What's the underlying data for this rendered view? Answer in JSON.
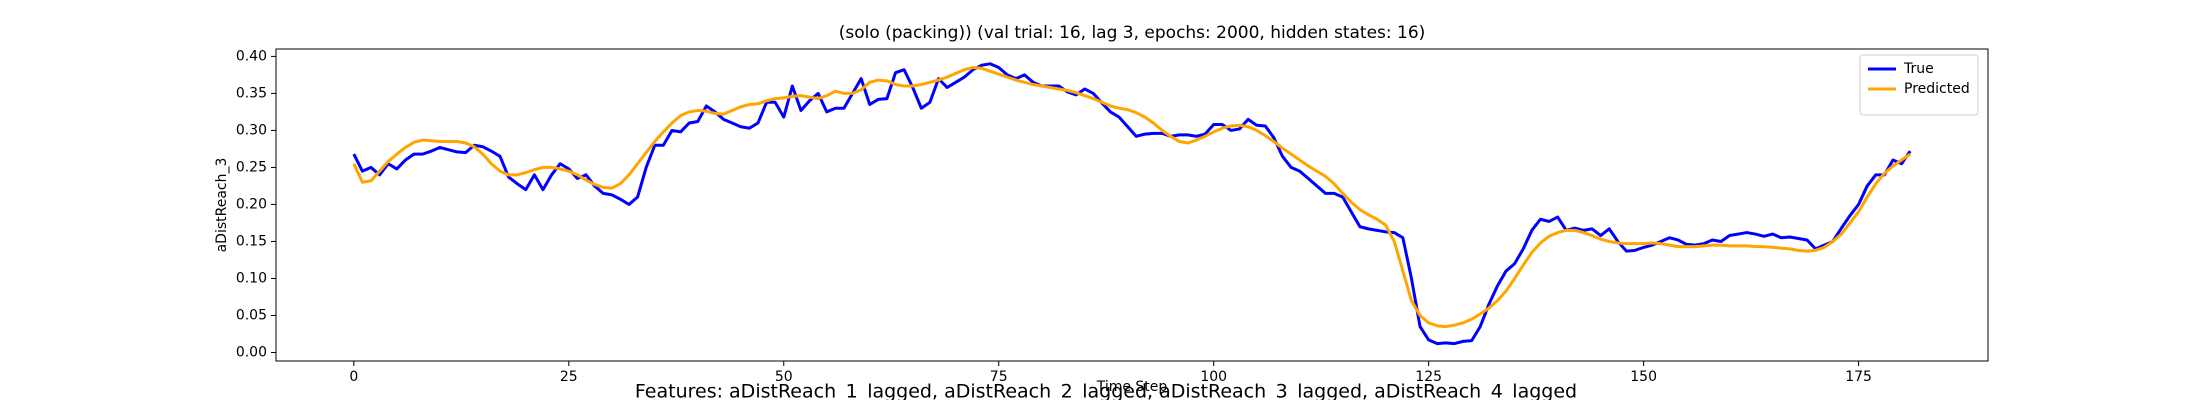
{
  "chart_data": {
    "type": "line",
    "title": "(solo (packing)) (val trial: 16, lag 3, epochs: 2000, hidden states: 16)",
    "xlabel": "Time Step",
    "ylabel": "aDistReach_3",
    "caption": "Features: aDistReach_1_lagged, aDistReach_2_lagged, aDistReach_3_lagged, aDistReach_4_lagged",
    "legend": "upper right",
    "x": [
      0,
      1,
      2,
      3,
      4,
      5,
      6,
      7,
      8,
      9,
      10,
      11,
      12,
      13,
      14,
      15,
      16,
      17,
      18,
      19,
      20,
      21,
      22,
      23,
      24,
      25,
      26,
      27,
      28,
      29,
      30,
      31,
      32,
      33,
      34,
      35,
      36,
      37,
      38,
      39,
      40,
      41,
      42,
      43,
      44,
      45,
      46,
      47,
      48,
      49,
      50,
      51,
      52,
      53,
      54,
      55,
      56,
      57,
      58,
      59,
      60,
      61,
      62,
      63,
      64,
      65,
      66,
      67,
      68,
      69,
      70,
      71,
      72,
      73,
      74,
      75,
      76,
      77,
      78,
      79,
      80,
      81,
      82,
      83,
      84,
      85,
      86,
      87,
      88,
      89,
      90,
      91,
      92,
      93,
      94,
      95,
      96,
      97,
      98,
      99,
      100,
      101,
      102,
      103,
      104,
      105,
      106,
      107,
      108,
      109,
      110,
      111,
      112,
      113,
      114,
      115,
      116,
      117,
      118,
      119,
      120,
      121,
      122,
      123,
      124,
      125,
      126,
      127,
      128,
      129,
      130,
      131,
      132,
      133,
      134,
      135,
      136,
      137,
      138,
      139,
      140,
      141,
      142,
      143,
      144,
      145,
      146,
      147,
      148,
      149,
      150,
      151,
      152,
      153,
      154,
      155,
      156,
      157,
      158,
      159,
      160,
      161,
      162,
      163,
      164,
      165,
      166,
      167,
      168,
      169,
      170,
      171,
      172,
      173,
      174,
      175,
      176,
      177,
      178,
      179,
      180,
      181
    ],
    "series": [
      {
        "name": "True",
        "color": "#0000ff",
        "values": [
          0.268,
          0.245,
          0.25,
          0.24,
          0.255,
          0.248,
          0.26,
          0.268,
          0.268,
          0.272,
          0.277,
          0.274,
          0.271,
          0.27,
          0.28,
          0.278,
          0.272,
          0.265,
          0.237,
          0.228,
          0.22,
          0.24,
          0.22,
          0.24,
          0.255,
          0.248,
          0.235,
          0.24,
          0.225,
          0.215,
          0.213,
          0.207,
          0.2,
          0.21,
          0.25,
          0.28,
          0.28,
          0.3,
          0.298,
          0.31,
          0.312,
          0.333,
          0.325,
          0.315,
          0.31,
          0.305,
          0.303,
          0.31,
          0.338,
          0.338,
          0.318,
          0.36,
          0.327,
          0.34,
          0.35,
          0.325,
          0.33,
          0.33,
          0.35,
          0.37,
          0.335,
          0.342,
          0.343,
          0.378,
          0.382,
          0.358,
          0.33,
          0.338,
          0.37,
          0.358,
          0.365,
          0.372,
          0.382,
          0.388,
          0.39,
          0.385,
          0.375,
          0.37,
          0.375,
          0.365,
          0.36,
          0.36,
          0.36,
          0.352,
          0.348,
          0.356,
          0.35,
          0.337,
          0.325,
          0.318,
          0.305,
          0.292,
          0.295,
          0.296,
          0.296,
          0.292,
          0.294,
          0.294,
          0.292,
          0.295,
          0.308,
          0.308,
          0.3,
          0.302,
          0.315,
          0.307,
          0.306,
          0.29,
          0.265,
          0.25,
          0.245,
          0.235,
          0.225,
          0.215,
          0.215,
          0.21,
          0.19,
          0.17,
          0.167,
          0.165,
          0.163,
          0.162,
          0.155,
          0.1,
          0.035,
          0.017,
          0.012,
          0.013,
          0.012,
          0.015,
          0.016,
          0.035,
          0.065,
          0.09,
          0.11,
          0.12,
          0.14,
          0.165,
          0.18,
          0.177,
          0.183,
          0.165,
          0.168,
          0.165,
          0.167,
          0.158,
          0.167,
          0.15,
          0.137,
          0.138,
          0.142,
          0.145,
          0.15,
          0.155,
          0.152,
          0.146,
          0.145,
          0.147,
          0.152,
          0.15,
          0.158,
          0.16,
          0.162,
          0.16,
          0.157,
          0.16,
          0.155,
          0.156,
          0.154,
          0.152,
          0.14,
          0.145,
          0.15,
          0.168,
          0.185,
          0.2,
          0.225,
          0.24,
          0.24,
          0.26,
          0.255,
          0.272
        ]
      },
      {
        "name": "Predicted",
        "color": "#ffa500",
        "values": [
          0.255,
          0.23,
          0.232,
          0.245,
          0.258,
          0.268,
          0.277,
          0.284,
          0.287,
          0.286,
          0.285,
          0.285,
          0.285,
          0.283,
          0.278,
          0.268,
          0.255,
          0.245,
          0.24,
          0.24,
          0.243,
          0.247,
          0.25,
          0.25,
          0.248,
          0.245,
          0.24,
          0.233,
          0.227,
          0.223,
          0.222,
          0.228,
          0.24,
          0.255,
          0.27,
          0.285,
          0.298,
          0.31,
          0.32,
          0.325,
          0.327,
          0.326,
          0.323,
          0.322,
          0.327,
          0.332,
          0.335,
          0.336,
          0.34,
          0.343,
          0.344,
          0.346,
          0.347,
          0.345,
          0.343,
          0.347,
          0.353,
          0.35,
          0.35,
          0.355,
          0.365,
          0.368,
          0.367,
          0.362,
          0.36,
          0.36,
          0.362,
          0.365,
          0.368,
          0.372,
          0.377,
          0.382,
          0.385,
          0.384,
          0.38,
          0.376,
          0.372,
          0.368,
          0.365,
          0.362,
          0.36,
          0.358,
          0.356,
          0.354,
          0.351,
          0.347,
          0.343,
          0.338,
          0.333,
          0.33,
          0.328,
          0.324,
          0.318,
          0.31,
          0.3,
          0.292,
          0.285,
          0.283,
          0.287,
          0.292,
          0.298,
          0.303,
          0.306,
          0.307,
          0.305,
          0.3,
          0.293,
          0.285,
          0.276,
          0.268,
          0.26,
          0.252,
          0.245,
          0.238,
          0.228,
          0.215,
          0.203,
          0.193,
          0.186,
          0.18,
          0.172,
          0.15,
          0.11,
          0.07,
          0.05,
          0.04,
          0.036,
          0.035,
          0.037,
          0.04,
          0.045,
          0.052,
          0.06,
          0.07,
          0.083,
          0.1,
          0.118,
          0.135,
          0.148,
          0.157,
          0.162,
          0.165,
          0.165,
          0.162,
          0.158,
          0.153,
          0.15,
          0.148,
          0.147,
          0.147,
          0.147,
          0.148,
          0.147,
          0.145,
          0.143,
          0.143,
          0.143,
          0.144,
          0.145,
          0.145,
          0.144,
          0.144,
          0.144,
          0.143,
          0.143,
          0.142,
          0.141,
          0.14,
          0.138,
          0.137,
          0.138,
          0.142,
          0.15,
          0.16,
          0.175,
          0.19,
          0.21,
          0.228,
          0.242,
          0.252,
          0.26,
          0.268
        ]
      }
    ],
    "xlim": [
      -9.05,
      190.05
    ],
    "xticks": [
      0,
      25,
      50,
      75,
      100,
      125,
      150,
      175
    ],
    "ylim": [
      -0.0115,
      0.41
    ],
    "yticks": [
      {
        "value": 0,
        "label": "0.00"
      },
      0.05,
      {
        "value": 0.1,
        "label": "0.10"
      },
      0.15,
      {
        "value": 0.2,
        "label": "0.20"
      },
      0.25,
      {
        "value": 0.3,
        "label": "0.30"
      },
      0.35,
      {
        "value": 0.4,
        "label": "0.40"
      }
    ]
  }
}
